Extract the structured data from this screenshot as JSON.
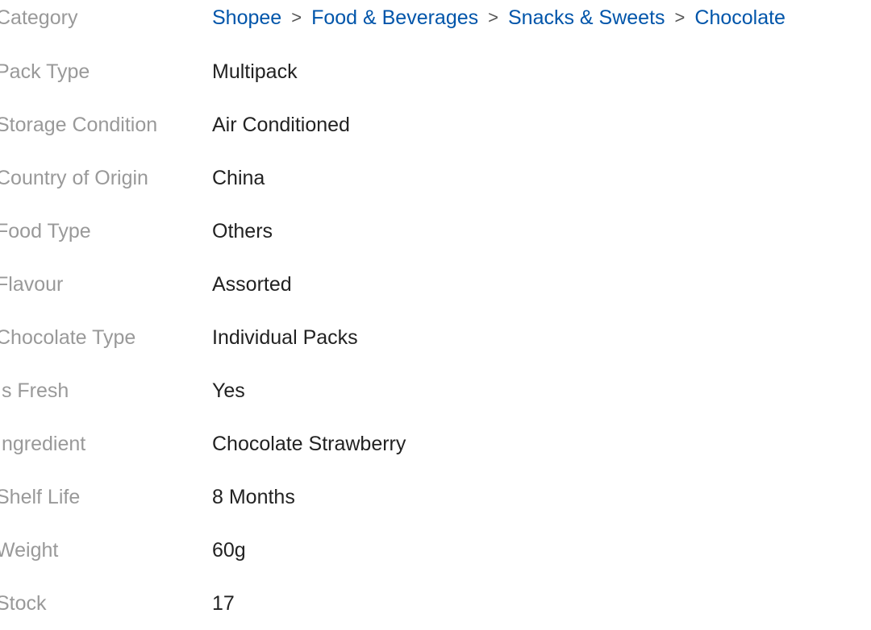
{
  "colors": {
    "label": "#999999",
    "value": "#222222",
    "link": "#0055aa"
  },
  "category": {
    "label": "Category",
    "separator_icon": "chevron-right-icon",
    "breadcrumb": [
      "Shopee",
      "Food & Beverages",
      "Snacks & Sweets",
      "Chocolate"
    ]
  },
  "specs": [
    {
      "label": "Pack Type",
      "value": "Multipack"
    },
    {
      "label": "Storage Condition",
      "value": "Air Conditioned"
    },
    {
      "label": "Country of Origin",
      "value": "China"
    },
    {
      "label": "Food Type",
      "value": "Others"
    },
    {
      "label": "Flavour",
      "value": "Assorted"
    },
    {
      "label": "Chocolate Type",
      "value": "Individual Packs"
    },
    {
      "label": "Is Fresh",
      "value": "Yes"
    },
    {
      "label": "Ingredient",
      "value": "Chocolate Strawberry"
    },
    {
      "label": "Shelf Life",
      "value": "8 Months"
    },
    {
      "label": "Weight",
      "value": "60g"
    },
    {
      "label": "Stock",
      "value": "17"
    }
  ]
}
